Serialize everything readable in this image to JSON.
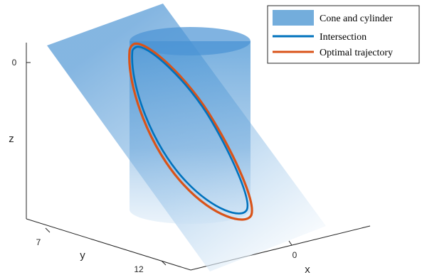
{
  "chart_data": {
    "type": "surface3d",
    "title": "",
    "axes": {
      "x": {
        "label": "x",
        "ticks": [
          "0"
        ]
      },
      "y": {
        "label": "y",
        "ticks": [
          "7",
          "12"
        ]
      },
      "z": {
        "label": "z",
        "ticks": [
          "0"
        ]
      }
    },
    "legend": {
      "placement": "top-right",
      "entries": [
        {
          "label": "Cone and cylinder",
          "kind": "patch",
          "color": "#5b9fd6"
        },
        {
          "label": "Intersection",
          "kind": "line",
          "color": "#0072bd"
        },
        {
          "label": "Optimal trajectory",
          "kind": "line",
          "color": "#d95319"
        }
      ]
    },
    "surfaces": [
      "Cone and cylinder"
    ],
    "curves": [
      "Intersection",
      "Optimal trajectory"
    ],
    "grid": false
  }
}
